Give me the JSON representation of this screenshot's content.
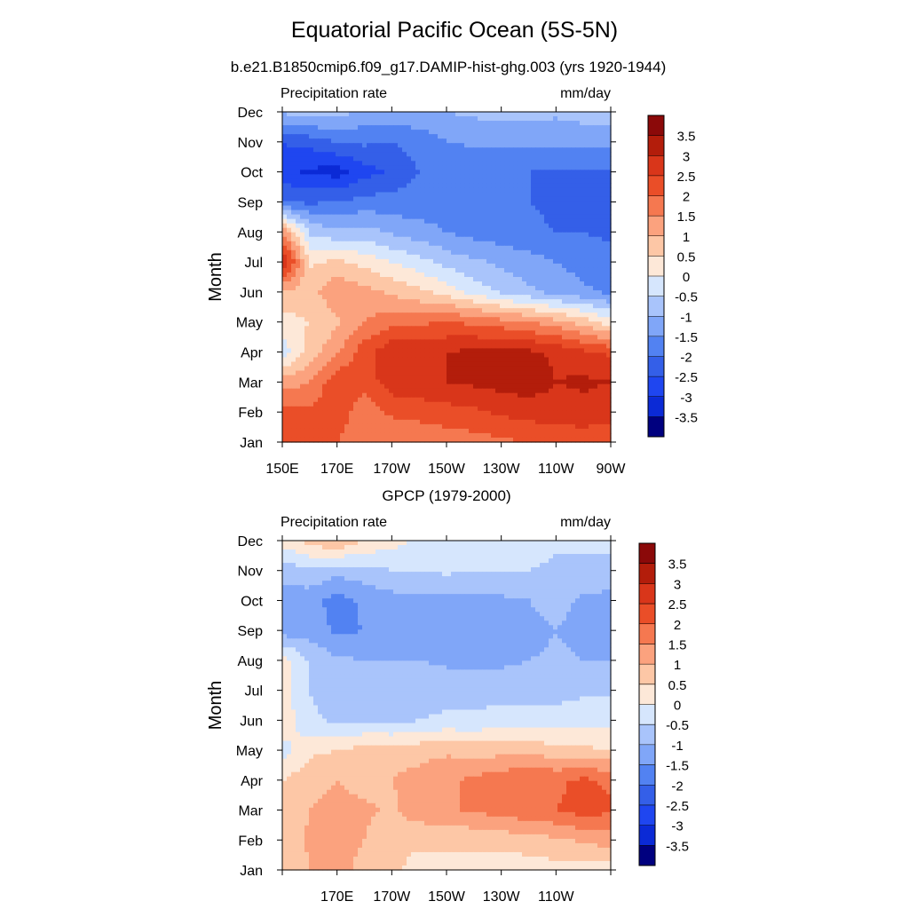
{
  "title": "Equatorial Pacific Ocean (5S-5N)",
  "subtitle": "b.e21.B1850cmip6.f09_g17.DAMIP-hist-ghg.003 (yrs 1920-1944)",
  "colors": [
    "#00007f",
    "#0b2ad6",
    "#1f46f0",
    "#345fe8",
    "#5282f2",
    "#80a6f8",
    "#a9c4fb",
    "#d6e6fd",
    "#fde8d8",
    "#fdc7a6",
    "#fba27e",
    "#f57850",
    "#ea4e28",
    "#d9361a",
    "#b31d0b",
    "#8b0909"
  ],
  "chart_data": [
    {
      "type": "heatmap",
      "title": "",
      "left_label": "Precipitation rate",
      "right_label": "mm/day",
      "ylabel": "Month",
      "xlabel": "",
      "x_ticks": [
        "150E",
        "170E",
        "170W",
        "150W",
        "130W",
        "110W",
        "90W"
      ],
      "y_ticks": [
        "Jan",
        "Feb",
        "Mar",
        "Apr",
        "May",
        "Jun",
        "Jul",
        "Aug",
        "Sep",
        "Oct",
        "Nov",
        "Dec"
      ],
      "colorbar_levels": [
        "3.5",
        "3",
        "2.5",
        "2",
        "1.5",
        "1",
        "0.5",
        "0",
        "-0.5",
        "-1",
        "-1.5",
        "-2",
        "-2.5",
        "-3",
        "-3.5"
      ],
      "x_values": [
        150,
        160,
        170,
        180,
        190,
        200,
        210,
        220,
        230,
        240,
        250,
        260,
        270
      ],
      "months": [
        1,
        2,
        3,
        4,
        5,
        6,
        7,
        8,
        9,
        10,
        11,
        12
      ],
      "z": [
        [
          2.5,
          2.3,
          2.0,
          1.6,
          1.5,
          1.6,
          1.7,
          1.8,
          1.9,
          2.0,
          2.1,
          2.2,
          2.2
        ],
        [
          2.2,
          2.1,
          2.3,
          1.7,
          2.1,
          2.2,
          2.3,
          2.4,
          2.6,
          2.7,
          2.8,
          2.8,
          2.7
        ],
        [
          1.2,
          1.5,
          2.4,
          2.2,
          2.8,
          2.9,
          3.0,
          3.1,
          3.2,
          3.3,
          3.0,
          3.1,
          3.0
        ],
        [
          -0.3,
          0.7,
          1.4,
          2.3,
          2.9,
          2.9,
          3.0,
          3.1,
          3.2,
          3.1,
          2.9,
          2.6,
          2.4
        ],
        [
          0.3,
          0.5,
          0.9,
          1.5,
          1.8,
          1.9,
          2.0,
          1.9,
          1.7,
          1.5,
          1.2,
          0.8,
          0.2
        ],
        [
          0.9,
          0.8,
          1.4,
          1.2,
          0.9,
          0.6,
          0.3,
          -0.2,
          -0.6,
          -0.9,
          -1.2,
          -1.4,
          -1.6
        ],
        [
          3.2,
          0.4,
          0.6,
          0.3,
          0.0,
          -0.3,
          -0.7,
          -0.9,
          -1.1,
          -1.3,
          -1.5,
          -1.7,
          -1.8
        ],
        [
          1.5,
          -0.6,
          -0.9,
          -0.8,
          -1.1,
          -1.3,
          -1.5,
          -1.7,
          -1.8,
          -1.9,
          -2.0,
          -2.0,
          -2.1
        ],
        [
          -2.0,
          -2.1,
          -2.0,
          -1.8,
          -1.8,
          -1.8,
          -1.8,
          -1.9,
          -2.0,
          -2.0,
          -2.1,
          -2.1,
          -2.1
        ],
        [
          -2.8,
          -3.1,
          -3.2,
          -2.7,
          -2.4,
          -2.0,
          -2.0,
          -2.0,
          -2.0,
          -2.0,
          -2.1,
          -2.1,
          -2.1
        ],
        [
          -2.5,
          -2.3,
          -2.0,
          -1.9,
          -2.0,
          -1.8,
          -1.5,
          -1.4,
          -1.4,
          -1.4,
          -1.4,
          -1.3,
          -1.3
        ],
        [
          -0.9,
          -0.7,
          -0.8,
          -1.1,
          -1.2,
          -1.1,
          -1.0,
          -0.9,
          -0.8,
          -0.8,
          -0.9,
          -0.8,
          -0.8
        ]
      ],
      "zlim": [
        -4,
        4
      ]
    },
    {
      "type": "heatmap",
      "title": "GPCP (1979-2000)",
      "left_label": "Precipitation rate",
      "right_label": "mm/day",
      "ylabel": "Month",
      "xlabel": "",
      "x_ticks": [
        "",
        "170E",
        "170W",
        "150W",
        "130W",
        "110W",
        ""
      ],
      "y_ticks": [
        "Jan",
        "Feb",
        "Mar",
        "Apr",
        "May",
        "Jun",
        "Jul",
        "Aug",
        "Sep",
        "Oct",
        "Nov",
        "Dec"
      ],
      "colorbar_levels": [
        "3.5",
        "3",
        "2.5",
        "2",
        "1.5",
        "1",
        "0.5",
        "0",
        "-0.5",
        "-1",
        "-1.5",
        "-2",
        "-2.5",
        "-3",
        "-3.5"
      ],
      "x_values": [
        150,
        160,
        170,
        180,
        190,
        200,
        210,
        220,
        230,
        240,
        250,
        260,
        270
      ],
      "months": [
        1,
        2,
        3,
        4,
        5,
        6,
        7,
        8,
        9,
        10,
        11,
        12
      ],
      "z": [
        [
          0.5,
          1.0,
          1.2,
          0.8,
          0.6,
          0.3,
          0.3,
          0.3,
          0.2,
          0.2,
          0.3,
          0.3,
          0.3
        ],
        [
          0.6,
          1.1,
          1.3,
          1.0,
          0.7,
          0.6,
          0.6,
          0.6,
          0.7,
          0.8,
          0.9,
          1.1,
          1.2
        ],
        [
          0.6,
          1.0,
          1.2,
          1.1,
          0.9,
          1.3,
          1.4,
          1.6,
          1.7,
          1.9,
          2.0,
          2.2,
          2.1
        ],
        [
          0.5,
          0.8,
          1.0,
          0.8,
          1.0,
          1.2,
          1.4,
          1.6,
          1.8,
          2.0,
          1.9,
          2.1,
          1.9
        ],
        [
          -0.2,
          0.4,
          0.5,
          0.7,
          0.8,
          0.8,
          0.9,
          0.8,
          0.8,
          0.8,
          0.7,
          0.6,
          0.5
        ],
        [
          0.3,
          -0.4,
          -0.6,
          -0.6,
          -0.7,
          -0.5,
          -0.4,
          -0.4,
          -0.3,
          -0.3,
          -0.3,
          -0.2,
          -0.2
        ],
        [
          0.3,
          -0.5,
          -0.8,
          -0.7,
          -0.7,
          -0.7,
          -0.7,
          -0.7,
          -0.7,
          -0.7,
          -0.7,
          -0.6,
          -0.6
        ],
        [
          0.3,
          -0.6,
          -0.9,
          -1.0,
          -1.0,
          -1.0,
          -1.1,
          -1.1,
          -1.1,
          -1.0,
          -0.9,
          -1.0,
          -1.0
        ],
        [
          -1.3,
          -1.2,
          -1.6,
          -1.5,
          -1.2,
          -1.1,
          -1.2,
          -1.3,
          -1.3,
          -1.2,
          -1.0,
          -1.2,
          -1.2
        ],
        [
          -1.2,
          -1.3,
          -1.7,
          -1.4,
          -1.2,
          -1.1,
          -1.1,
          -1.2,
          -1.1,
          -1.0,
          -0.8,
          -1.1,
          -1.2
        ],
        [
          -0.8,
          -0.6,
          -0.8,
          -0.7,
          -0.5,
          -0.5,
          -0.4,
          -0.5,
          -0.5,
          -0.5,
          -0.6,
          -0.6,
          -0.6
        ],
        [
          0.2,
          0.7,
          1.0,
          0.5,
          0.2,
          -0.1,
          -0.3,
          -0.3,
          -0.3,
          -0.3,
          -0.4,
          -0.4,
          -0.4
        ]
      ],
      "zlim": [
        -4,
        4
      ]
    }
  ]
}
